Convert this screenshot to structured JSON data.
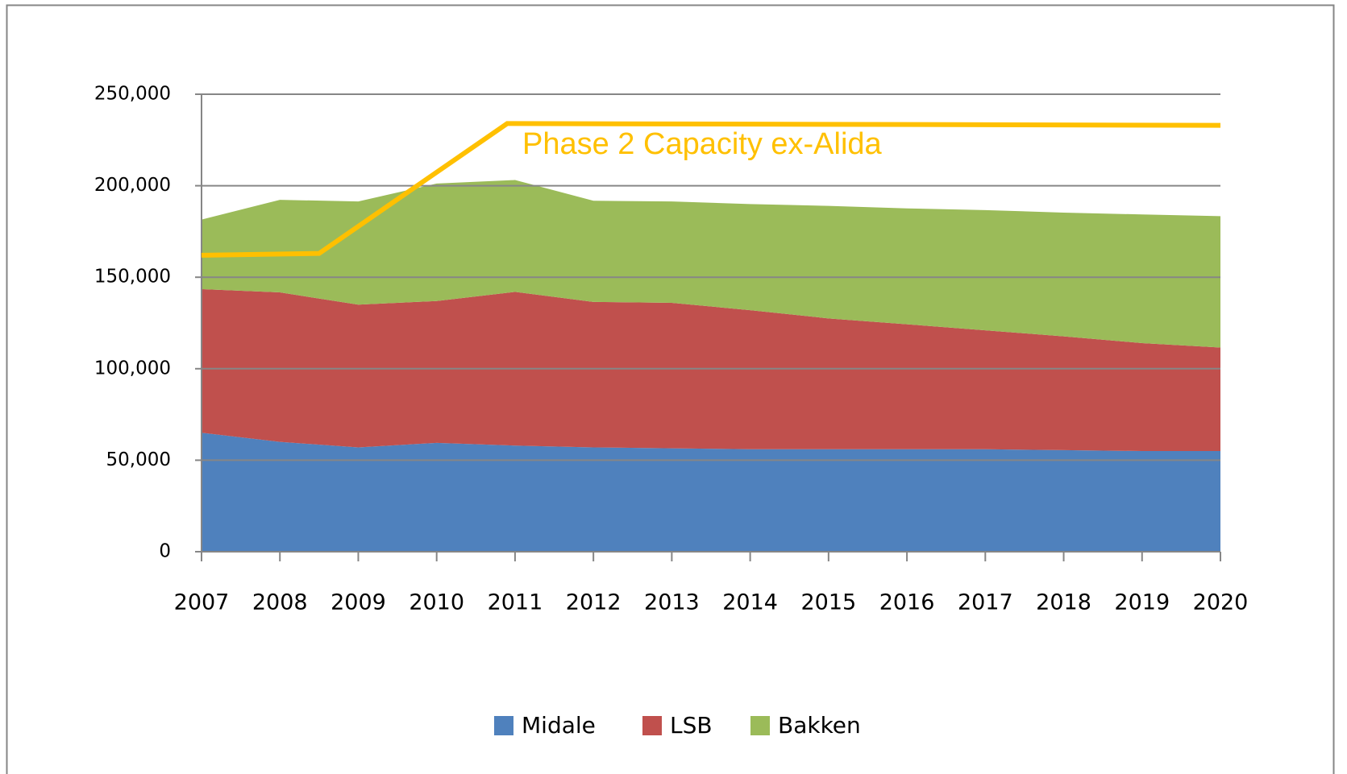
{
  "chart_data": {
    "type": "stacked_area",
    "x": [
      2007,
      2008,
      2009,
      2010,
      2011,
      2012,
      2013,
      2014,
      2015,
      2016,
      2017,
      2018,
      2019,
      2020
    ],
    "xlim": [
      2007,
      2020
    ],
    "xticks": [
      2007,
      2008,
      2009,
      2010,
      2011,
      2012,
      2013,
      2014,
      2015,
      2016,
      2017,
      2018,
      2019,
      2020
    ],
    "ylim": [
      0,
      250000
    ],
    "yticks": [
      0,
      {
        "value": 50000,
        "label": "50,000"
      },
      {
        "value": 100000,
        "label": "100,000"
      },
      {
        "value": 150000,
        "label": "150,000"
      },
      {
        "value": 200000,
        "label": "200,000"
      },
      {
        "value": 250000,
        "label": "250,000"
      }
    ],
    "grid": true,
    "legend": "bottom",
    "series": [
      {
        "name": "Midale",
        "color": "#4f81bd",
        "values": [
          65000,
          60000,
          57000,
          59500,
          58000,
          57000,
          56500,
          56000,
          56000,
          56000,
          56000,
          55500,
          55000,
          55000
        ]
      },
      {
        "name": "LSB",
        "color": "#c0504d",
        "values": [
          78500,
          81700,
          78000,
          77500,
          84000,
          79500,
          79500,
          76000,
          71500,
          68300,
          65000,
          62200,
          59000,
          56600
        ]
      },
      {
        "name": "Bakken",
        "color": "#9bbb59",
        "values": [
          38000,
          50600,
          56400,
          64200,
          61100,
          55300,
          55400,
          58000,
          61500,
          63300,
          65700,
          67600,
          70300,
          71800
        ]
      }
    ],
    "capacity": {
      "label": "Phase 2 Capacity ex-Alida",
      "color": "#ffc000",
      "x": [
        2007,
        2008.5,
        2010.9,
        2020
      ],
      "values": [
        162000,
        163000,
        234000,
        233000
      ]
    }
  }
}
